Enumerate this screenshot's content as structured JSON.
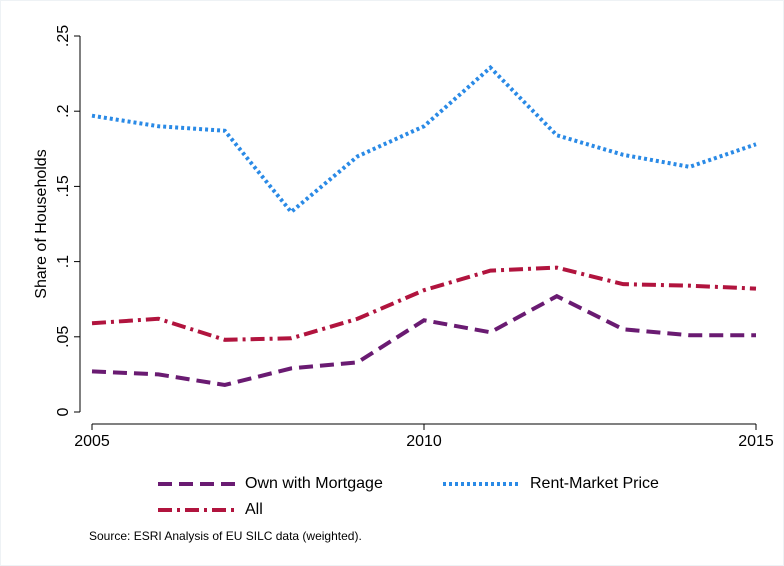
{
  "chart_data": {
    "type": "line",
    "y_label": "Share of Households",
    "note": "Source:  ESRI Analysis of EU SILC data (weighted).",
    "x": [
      2005,
      2006,
      2007,
      2008,
      2009,
      2010,
      2011,
      2012,
      2013,
      2014,
      2015
    ],
    "xlim": [
      2005,
      2015
    ],
    "xticks": [
      2005,
      2010,
      2015
    ],
    "ylim": [
      0,
      0.25
    ],
    "yticks": [
      0,
      {
        "value": 0.05,
        "label": ".05"
      },
      {
        "value": 0.1,
        "label": ".1"
      },
      {
        "value": 0.15,
        "label": ".15"
      },
      {
        "value": 0.2,
        "label": ".2"
      },
      {
        "value": 0.25,
        "label": ".25"
      }
    ],
    "series": [
      {
        "name": "Own with Mortgage",
        "color": "#6a1b72",
        "dash": "dashed",
        "values": [
          0.027,
          0.025,
          0.018,
          0.029,
          0.033,
          0.061,
          0.053,
          0.077,
          0.055,
          0.051,
          0.051
        ]
      },
      {
        "name": "Rent-Market Price",
        "color": "#2a8ae6",
        "dash": "dotted",
        "values": [
          0.197,
          0.19,
          0.187,
          0.133,
          0.17,
          0.19,
          0.229,
          0.184,
          0.171,
          0.163,
          0.178
        ]
      },
      {
        "name": "All",
        "color": "#b1143e",
        "dash": "dashdot",
        "values": [
          0.059,
          0.062,
          0.048,
          0.049,
          0.062,
          0.081,
          0.094,
          0.096,
          0.085,
          0.084,
          0.082
        ]
      }
    ]
  }
}
